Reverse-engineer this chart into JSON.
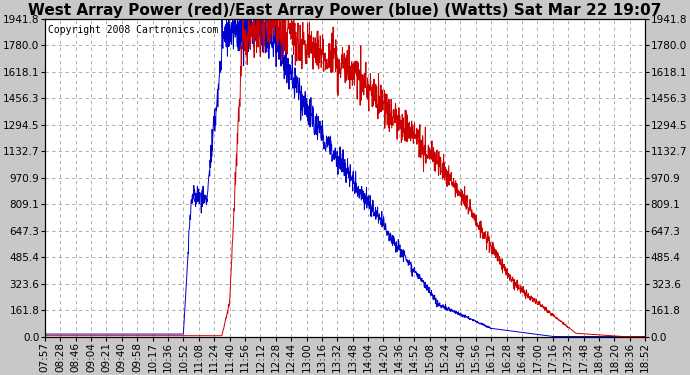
{
  "title": "West Array Power (red)/East Array Power (blue) (Watts) Sat Mar 22 19:07",
  "copyright_text": "Copyright 2008 Cartronics.com",
  "background_color": "#c8c8c8",
  "plot_bg_color": "#ffffff",
  "grid_color": "#a0a0a0",
  "y_ticks": [
    0.0,
    161.8,
    323.6,
    485.4,
    647.3,
    809.1,
    970.9,
    1132.7,
    1294.5,
    1456.3,
    1618.1,
    1780.0,
    1941.8
  ],
  "y_max": 1941.8,
  "x_labels": [
    "07:57",
    "08:28",
    "08:46",
    "09:04",
    "09:21",
    "09:40",
    "09:58",
    "10:17",
    "10:36",
    "10:52",
    "11:08",
    "11:24",
    "11:40",
    "11:56",
    "12:12",
    "12:28",
    "12:44",
    "13:00",
    "13:16",
    "13:32",
    "13:48",
    "14:04",
    "14:20",
    "14:36",
    "14:52",
    "15:08",
    "15:24",
    "15:40",
    "15:56",
    "16:12",
    "16:28",
    "16:44",
    "17:00",
    "17:16",
    "17:32",
    "17:48",
    "18:04",
    "18:20",
    "18:36",
    "18:52"
  ],
  "red_color": "#cc0000",
  "blue_color": "#0000cc",
  "title_fontsize": 11,
  "tick_fontsize": 7.5,
  "copyright_fontsize": 7
}
